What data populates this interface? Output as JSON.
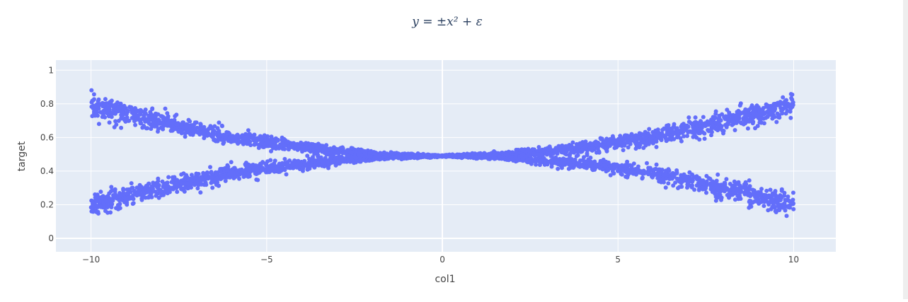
{
  "chart_data": {
    "type": "scatter",
    "title": "y = ±x² + ε",
    "xlabel": "col1",
    "ylabel": "target",
    "xlim": [
      -11,
      11.2
    ],
    "ylim": [
      -0.08,
      1.06
    ],
    "x_ticks": [
      -10,
      -5,
      0,
      5,
      10
    ],
    "x_tick_labels": [
      "−10",
      "−5",
      "0",
      "5",
      "10"
    ],
    "y_ticks": [
      0,
      0.2,
      0.4,
      0.6,
      0.8,
      1
    ],
    "y_tick_labels": [
      "0",
      "0.2",
      "0.4",
      "0.6",
      "0.8",
      "1"
    ],
    "grid": true,
    "series": [
      {
        "relation": "upper branch: target ≈ 0.49 + 0.003·x² + noise",
        "x": [
          -10,
          -8,
          -6,
          -4,
          -2,
          0,
          2,
          4,
          6,
          8,
          10
        ],
        "y": [
          0.79,
          0.69,
          0.6,
          0.54,
          0.5,
          0.49,
          0.5,
          0.54,
          0.6,
          0.69,
          0.79
        ],
        "spread": [
          0.08,
          0.07,
          0.055,
          0.04,
          0.02,
          0.005,
          0.02,
          0.04,
          0.055,
          0.07,
          0.08
        ]
      },
      {
        "relation": "lower branch: target ≈ 0.49 − 0.003·x² + noise",
        "x": [
          -10,
          -8,
          -6,
          -4,
          -2,
          0,
          2,
          4,
          6,
          8,
          10
        ],
        "y": [
          0.2,
          0.3,
          0.39,
          0.44,
          0.48,
          0.49,
          0.48,
          0.44,
          0.39,
          0.3,
          0.2
        ],
        "spread": [
          0.08,
          0.07,
          0.055,
          0.04,
          0.02,
          0.005,
          0.02,
          0.04,
          0.055,
          0.07,
          0.08
        ]
      }
    ],
    "colors": {
      "marker": "#636efa",
      "plot_background": "#e5ecf6",
      "grid": "#ffffff",
      "text": "#444444",
      "title": "#2a3f5f"
    }
  }
}
